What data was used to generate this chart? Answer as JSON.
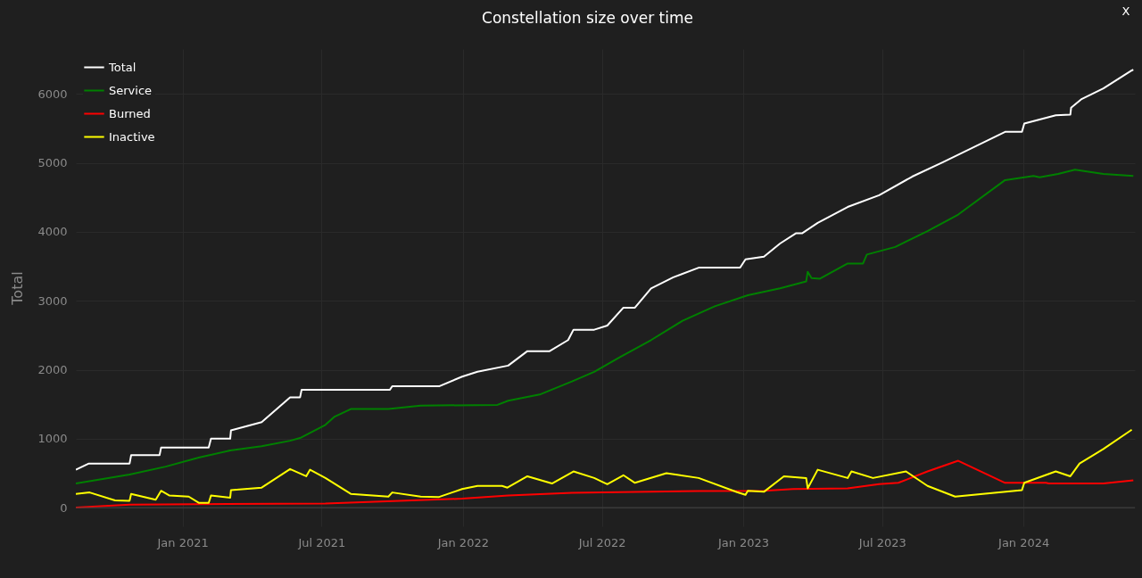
{
  "chart_data": {
    "type": "line",
    "title": "Constellation size over time",
    "ylabel": "Total",
    "annotations": [
      "X"
    ],
    "xlim": [
      "2020-08-15",
      "2024-05-25"
    ],
    "xticks": [
      {
        "value": "2021-01-01",
        "label": "Jan 2021"
      },
      {
        "value": "2021-07-01",
        "label": "Jul 2021"
      },
      {
        "value": "2022-01-01",
        "label": "Jan 2022"
      },
      {
        "value": "2022-07-01",
        "label": "Jul 2022"
      },
      {
        "value": "2023-01-01",
        "label": "Jan 2023"
      },
      {
        "value": "2023-07-01",
        "label": "Jul 2023"
      },
      {
        "value": "2024-01-01",
        "label": "Jan 2024"
      }
    ],
    "ylim": [
      -270,
      6650
    ],
    "yticks": [
      0,
      1000,
      2000,
      3000,
      4000,
      5000,
      6000
    ],
    "grid": true,
    "legend": "top left",
    "line_style": "solid",
    "marker": "none",
    "series": [
      {
        "name": "Total",
        "color": "#ffffff",
        "x": [
          "2020-08-15",
          "2020-09-01",
          "2020-10-24",
          "2020-10-26",
          "2020-12-02",
          "2020-12-04",
          "2021-02-04",
          "2021-02-07",
          "2021-03-04",
          "2021-03-05",
          "2021-04-14",
          "2021-05-21",
          "2021-06-03",
          "2021-06-05",
          "2021-09-28",
          "2021-10-01",
          "2021-12-01",
          "2021-12-31",
          "2022-01-20",
          "2022-03-01",
          "2022-03-26",
          "2022-04-24",
          "2022-05-18",
          "2022-05-25",
          "2022-06-21",
          "2022-07-08",
          "2022-07-29",
          "2022-08-13",
          "2022-09-03",
          "2022-10-02",
          "2022-11-04",
          "2022-12-28",
          "2023-01-04",
          "2023-01-28",
          "2023-02-18",
          "2023-03-11",
          "2023-03-19",
          "2023-04-08",
          "2023-05-17",
          "2023-06-27",
          "2023-08-09",
          "2023-09-18",
          "2023-12-08",
          "2023-12-30",
          "2024-01-02",
          "2024-02-12",
          "2024-03-02",
          "2024-03-03",
          "2024-03-16",
          "2024-04-14",
          "2024-05-21",
          "2024-05-23"
        ],
        "values": [
          550,
          640,
          640,
          760,
          760,
          870,
          870,
          1000,
          1000,
          1120,
          1240,
          1600,
          1600,
          1710,
          1710,
          1760,
          1760,
          1900,
          1970,
          2060,
          2270,
          2270,
          2430,
          2580,
          2580,
          2640,
          2900,
          2900,
          3180,
          3340,
          3480,
          3480,
          3600,
          3640,
          3830,
          3980,
          3980,
          4130,
          4360,
          4530,
          4800,
          5010,
          5450,
          5450,
          5570,
          5690,
          5700,
          5800,
          5920,
          6080,
          6340,
          6350
        ]
      },
      {
        "name": "Service",
        "color": "#008000",
        "x": [
          "2020-08-15",
          "2020-10-24",
          "2020-12-10",
          "2021-01-22",
          "2021-03-04",
          "2021-04-14",
          "2021-05-21",
          "2021-06-03",
          "2021-07-06",
          "2021-07-18",
          "2021-08-08",
          "2021-09-26",
          "2021-11-07",
          "2022-02-15",
          "2022-03-01",
          "2022-04-11",
          "2022-05-23",
          "2022-06-21",
          "2022-07-24",
          "2022-09-03",
          "2022-10-14",
          "2022-11-25",
          "2023-01-07",
          "2023-02-18",
          "2023-03-24",
          "2023-03-26",
          "2023-03-31",
          "2023-04-11",
          "2023-05-17",
          "2023-06-06",
          "2023-06-11",
          "2023-07-18",
          "2023-08-29",
          "2023-10-08",
          "2023-12-08",
          "2024-01-14",
          "2024-01-22",
          "2024-02-15",
          "2024-03-08",
          "2024-04-14",
          "2024-05-23"
        ],
        "values": [
          350,
          480,
          595,
          725,
          830,
          890,
          970,
          1010,
          1200,
          1320,
          1430,
          1430,
          1480,
          1490,
          1550,
          1640,
          1830,
          1970,
          2180,
          2430,
          2710,
          2920,
          3080,
          3180,
          3280,
          3420,
          3330,
          3320,
          3540,
          3540,
          3670,
          3780,
          4010,
          4250,
          4750,
          4810,
          4790,
          4840,
          4900,
          4840,
          4810
        ]
      },
      {
        "name": "Burned",
        "color": "#ff0000",
        "x": [
          "2020-08-15",
          "2020-10-24",
          "2021-07-06",
          "2021-12-31",
          "2022-03-01",
          "2022-05-23",
          "2022-11-04",
          "2023-01-28",
          "2023-03-07",
          "2023-05-17",
          "2023-06-27",
          "2023-07-22",
          "2023-08-29",
          "2023-10-08",
          "2023-12-08",
          "2024-01-30",
          "2024-02-03",
          "2024-04-14",
          "2024-05-23"
        ],
        "values": [
          0,
          45,
          60,
          130,
          175,
          215,
          240,
          245,
          270,
          280,
          340,
          360,
          525,
          680,
          360,
          360,
          350,
          350,
          395
        ]
      },
      {
        "name": "Inactive",
        "color": "#ffff00",
        "x": [
          "2020-08-15",
          "2020-09-02",
          "2020-10-05",
          "2020-10-24",
          "2020-10-26",
          "2020-11-27",
          "2020-12-04",
          "2020-12-15",
          "2021-01-09",
          "2021-01-22",
          "2021-02-04",
          "2021-02-07",
          "2021-03-04",
          "2021-03-05",
          "2021-04-14",
          "2021-05-21",
          "2021-06-11",
          "2021-06-16",
          "2021-07-06",
          "2021-08-08",
          "2021-09-26",
          "2021-10-01",
          "2021-11-07",
          "2021-12-01",
          "2021-12-31",
          "2022-01-20",
          "2022-02-21",
          "2022-02-28",
          "2022-03-26",
          "2022-04-27",
          "2022-05-25",
          "2022-06-21",
          "2022-07-08",
          "2022-07-29",
          "2022-08-13",
          "2022-09-23",
          "2022-11-04",
          "2022-12-24",
          "2023-01-04",
          "2023-01-07",
          "2023-01-28",
          "2023-02-23",
          "2023-03-24",
          "2023-03-26",
          "2023-04-08",
          "2023-05-17",
          "2023-05-22",
          "2023-06-19",
          "2023-08-01",
          "2023-08-29",
          "2023-10-04",
          "2023-12-30",
          "2024-01-02",
          "2024-02-12",
          "2024-03-02",
          "2024-03-14",
          "2024-04-14",
          "2024-05-21"
        ],
        "values": [
          200,
          220,
          105,
          100,
          200,
          115,
          245,
          175,
          160,
          70,
          70,
          175,
          145,
          255,
          290,
          560,
          455,
          550,
          430,
          200,
          160,
          220,
          160,
          155,
          270,
          315,
          315,
          290,
          455,
          350,
          525,
          430,
          340,
          470,
          360,
          500,
          430,
          225,
          185,
          245,
          230,
          455,
          430,
          280,
          550,
          430,
          525,
          430,
          525,
          315,
          160,
          255,
          360,
          525,
          455,
          640,
          850,
          1130
        ]
      }
    ]
  }
}
